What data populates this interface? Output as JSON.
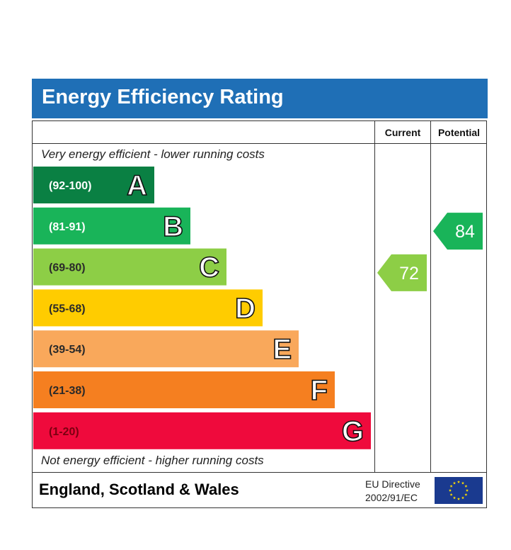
{
  "title": "Energy Efficiency Rating",
  "columns": {
    "current": "Current",
    "potential": "Potential"
  },
  "top_caption": "Very energy efficient - lower running costs",
  "bottom_caption": "Not energy efficient - higher running costs",
  "footer": {
    "region": "England, Scotland & Wales",
    "directive_line1": "EU Directive",
    "directive_line2": "2002/91/EC"
  },
  "chart_data": {
    "type": "bar",
    "categories": [
      "A",
      "B",
      "C",
      "D",
      "E",
      "F",
      "G"
    ],
    "ranges": [
      "(92-100)",
      "(81-91)",
      "(69-80)",
      "(55-68)",
      "(39-54)",
      "(21-38)",
      "(1-20)"
    ],
    "colors": [
      "#0a8043",
      "#19b459",
      "#8dce46",
      "#ffcc00",
      "#f9a85b",
      "#f57f20",
      "#ef0a3c"
    ],
    "current": {
      "value": 72,
      "band": "C",
      "color": "#8dce46"
    },
    "potential": {
      "value": 84,
      "band": "B",
      "color": "#19b459"
    }
  }
}
